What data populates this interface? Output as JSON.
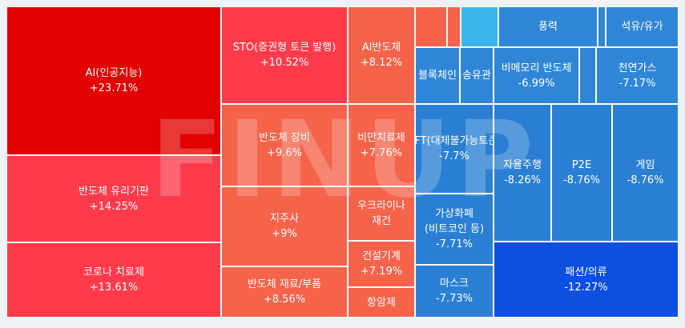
{
  "chart_data": {
    "type": "treemap",
    "watermark": "FINUP",
    "colors": {
      "up_strong": "#e50000",
      "up_mid": "#ff3b4b",
      "up_light": "#f4634a",
      "down_light": "#2f86d6",
      "down_mid": "#2a7fd4",
      "down_strong": "#0d4fe0",
      "neutral": "#3ab7ea"
    },
    "tiles": [
      {
        "name": "AI(인공지능)",
        "value": "+23.71%",
        "color": "#e30000"
      },
      {
        "name": "반도체 유리기판",
        "value": "+14.25%",
        "color": "#ff3b4b"
      },
      {
        "name": "코로나 치료제",
        "value": "+13.61%",
        "color": "#ff3b4b"
      },
      {
        "name": "STO(증권형 토큰 발행)",
        "value": "+10.52%",
        "color": "#ff3b4b"
      },
      {
        "name": "반도체 장비",
        "value": "+9.6%",
        "color": "#f4634a"
      },
      {
        "name": "지주사",
        "value": "+9%",
        "color": "#f4634a"
      },
      {
        "name": "반도체 재료/부품",
        "value": "+8.56%",
        "color": "#f4634a"
      },
      {
        "name": "AI반도체",
        "value": "+8.12%",
        "color": "#f4634a"
      },
      {
        "name": "비만치료제",
        "value": "+7.76%",
        "color": "#f4634a"
      },
      {
        "name": "우크라이나 재건",
        "value": "",
        "color": "#f4634a"
      },
      {
        "name": "건설기계",
        "value": "+7.19%",
        "color": "#f4634a"
      },
      {
        "name": "항암제",
        "value": "",
        "color": "#f4634a"
      },
      {
        "name": "",
        "value": "",
        "color": "#f4634a"
      },
      {
        "name": "",
        "value": "",
        "color": "#f4634a"
      },
      {
        "name": "",
        "value": "",
        "color": "#3ab7ea"
      },
      {
        "name": "풍력",
        "value": "",
        "color": "#2f86d6"
      },
      {
        "name": "",
        "value": "",
        "color": "#2f86d6"
      },
      {
        "name": "석유/유가",
        "value": "",
        "color": "#2f86d6"
      },
      {
        "name": "블록체인",
        "value": "",
        "color": "#2f86d6"
      },
      {
        "name": "송유관",
        "value": "",
        "color": "#2f86d6"
      },
      {
        "name": "비메모리 반도체",
        "value": "-6.99%",
        "color": "#2f86d6"
      },
      {
        "name": "",
        "value": "",
        "color": "#2f86d6"
      },
      {
        "name": "천연가스",
        "value": "-7.17%",
        "color": "#2f86d6"
      },
      {
        "name": "NFT(대체불가능토큰)",
        "value": "-7.7%",
        "color": "#2a7fd4"
      },
      {
        "name": "가상화폐(비트코인 등)",
        "value": "-7.71%",
        "color": "#2a7fd4"
      },
      {
        "name": "마스크",
        "value": "-7.73%",
        "color": "#2a7fd4"
      },
      {
        "name": "자율주행",
        "value": "-8.26%",
        "color": "#2a7fd4"
      },
      {
        "name": "P2E",
        "value": "-8.76%",
        "color": "#2a7fd4"
      },
      {
        "name": "게임",
        "value": "-8.76%",
        "color": "#2a7fd4"
      },
      {
        "name": "패션/의류",
        "value": "-12.27%",
        "color": "#0d4fe0"
      }
    ]
  }
}
